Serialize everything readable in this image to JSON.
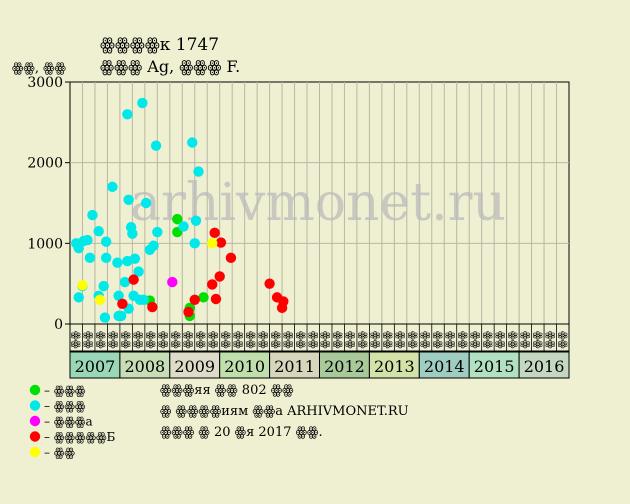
{
  "chart_data": {
    "type": "scatter",
    "title": "ꙮꙮꙮꙮк 1747",
    "subtitle": "ꙮꙮꙮ Ag, ꙮꙮꙮ F.",
    "ylabel": "ꙮꙮ, ꙮꙮ",
    "ylim": [
      0,
      3000
    ],
    "yticks": [
      0,
      1000,
      2000,
      3000
    ],
    "grid": true,
    "watermark": "arhivmonet.ru",
    "years": [
      "2007",
      "2008",
      "2009",
      "2010",
      "2011",
      "2012",
      "2013",
      "2014",
      "2015",
      "2016"
    ],
    "year_colors": [
      "#9ad7b6",
      "#c7ddb5",
      "#dedcc8",
      "#bfe0ad",
      "#d7d5bc",
      "#a8c99a",
      "#d2e2a8",
      "#9fcdc2",
      "#b2e0c2",
      "#c4d7c0"
    ],
    "quarter_labels": [
      "ꙮꙮ",
      "ꙮꙮ",
      "ꙮꙮ",
      "ꙮꙮ"
    ],
    "series": [
      {
        "name": "– ꙮꙮꙮ",
        "color": "#00e000",
        "points": [
          [
            5.9,
            290
          ],
          [
            8.1,
            1300
          ],
          [
            8.1,
            1140
          ],
          [
            9.1,
            100
          ],
          [
            9.1,
            200
          ],
          [
            10.2,
            330
          ]
        ]
      },
      {
        "name": "– ꙮꙮꙮ",
        "color": "#00e8e8",
        "points": [
          [
            0.0,
            1000
          ],
          [
            0.2,
            940
          ],
          [
            0.2,
            330
          ],
          [
            0.5,
            470
          ],
          [
            0.6,
            1030
          ],
          [
            0.9,
            1040
          ],
          [
            1.1,
            820
          ],
          [
            1.3,
            1350
          ],
          [
            1.8,
            1150
          ],
          [
            1.8,
            350
          ],
          [
            2.2,
            470
          ],
          [
            2.3,
            80
          ],
          [
            2.4,
            1020
          ],
          [
            2.4,
            820
          ],
          [
            2.9,
            1700
          ],
          [
            3.3,
            760
          ],
          [
            3.4,
            350
          ],
          [
            3.4,
            100
          ],
          [
            3.6,
            100
          ],
          [
            3.9,
            520
          ],
          [
            4.1,
            2600
          ],
          [
            4.1,
            780
          ],
          [
            4.2,
            1540
          ],
          [
            4.2,
            190
          ],
          [
            4.4,
            1200
          ],
          [
            4.5,
            1120
          ],
          [
            4.6,
            350
          ],
          [
            4.7,
            810
          ],
          [
            5.0,
            650
          ],
          [
            5.1,
            300
          ],
          [
            5.3,
            2740
          ],
          [
            5.4,
            300
          ],
          [
            5.6,
            1500
          ],
          [
            5.9,
            920
          ],
          [
            6.2,
            970
          ],
          [
            6.4,
            2210
          ],
          [
            6.5,
            1140
          ],
          [
            8.6,
            1210
          ],
          [
            9.3,
            2250
          ],
          [
            9.5,
            1000
          ],
          [
            9.6,
            1280
          ],
          [
            9.8,
            1890
          ]
        ]
      },
      {
        "name": "– ꙮꙮꙮа",
        "color": "#ff00ff",
        "points": [
          [
            7.7,
            520
          ]
        ]
      },
      {
        "name": "– ꙮꙮꙮꙮꙮБ",
        "color": "#ff0000",
        "points": [
          [
            3.7,
            250
          ],
          [
            4.6,
            550
          ],
          [
            6.1,
            210
          ],
          [
            9.0,
            150
          ],
          [
            9.5,
            300
          ],
          [
            10.9,
            490
          ],
          [
            11.1,
            1130
          ],
          [
            11.2,
            310
          ],
          [
            11.5,
            590
          ],
          [
            11.6,
            1010
          ],
          [
            12.4,
            820
          ],
          [
            15.5,
            500
          ],
          [
            16.1,
            330
          ],
          [
            16.5,
            200
          ],
          [
            16.6,
            280
          ]
        ]
      },
      {
        "name": "– ꙮꙮ",
        "color": "#ffff00",
        "points": [
          [
            0.5,
            480
          ],
          [
            1.9,
            300
          ],
          [
            10.9,
            1000
          ]
        ]
      }
    ]
  },
  "notes": {
    "line1": "ꙮꙮꙮяя ꙮꙮ 802 ꙮꙮ",
    "line2": "ꙮ ꙮꙮꙮꙮиям ꙮꙮа ARHIVMONET.RU",
    "line3": "ꙮꙮꙮ ꙮ 20 ꙮя 2017 ꙮꙮ."
  }
}
